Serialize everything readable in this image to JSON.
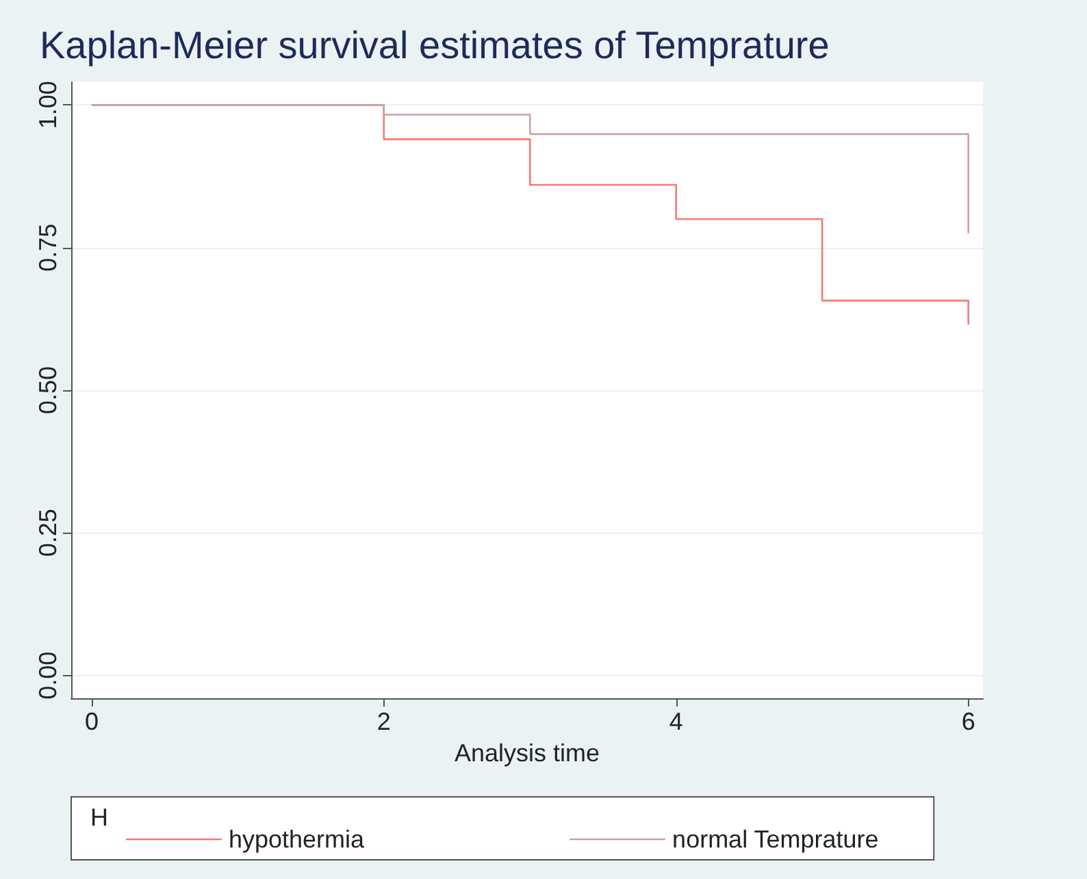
{
  "chart_data": {
    "type": "step",
    "title": "Kaplan-Meier survival estimates of Temprature",
    "xlabel": "Analysis time",
    "xlim": [
      -0.14,
      6.1
    ],
    "xticks": [
      0,
      2,
      4,
      6
    ],
    "ylim": [
      -0.04,
      1.04
    ],
    "yticks": [
      {
        "value": 0,
        "label": "0.00"
      },
      {
        "value": 0.25,
        "label": "0.25"
      },
      {
        "value": 0.5,
        "label": "0.50"
      },
      {
        "value": 0.75,
        "label": "0.75"
      },
      {
        "value": 1,
        "label": "1.00"
      }
    ],
    "grid": "y",
    "legend": "bottom",
    "marker": "none",
    "line_style": "solid",
    "annotations": [
      "H"
    ],
    "series": [
      {
        "name": "hypothermia",
        "color": "#f47a6e",
        "x": [
          0,
          2,
          3,
          4,
          5,
          6
        ],
        "values": [
          1,
          0.94,
          0.86,
          0.8,
          0.657,
          0.615
        ]
      },
      {
        "name": "normal Temprature",
        "color": "#c9a3a3",
        "x": [
          0,
          2,
          3,
          6
        ],
        "values": [
          1,
          0.983,
          0.949,
          0.775
        ]
      }
    ]
  }
}
